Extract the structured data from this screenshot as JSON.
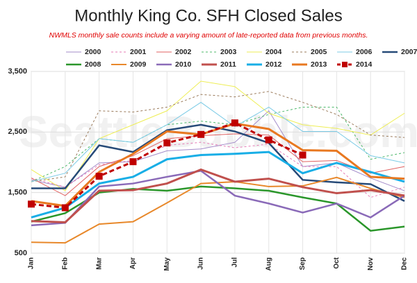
{
  "chart_data": {
    "type": "line",
    "title": "Monthly King Co. SFH Closed Sales",
    "subtitle": "NWMLS monthly sale counts include a varying amount of late-reported  data from previous months.",
    "watermark": "SeattleBubble.com",
    "categories": [
      "Jan",
      "Feb",
      "Mar",
      "Apr",
      "May",
      "Jun",
      "Jul",
      "Aug",
      "Sep",
      "Oct",
      "Nov",
      "Dec"
    ],
    "ylim": [
      500,
      3500
    ],
    "yticks": [
      {
        "value": 500,
        "label": "500"
      },
      {
        "value": 1500,
        "label": "1,500"
      },
      {
        "value": 2500,
        "label": "2,500"
      },
      {
        "value": 3500,
        "label": "3,500"
      }
    ],
    "grid": true,
    "series": [
      {
        "name": "2000",
        "color": "#a38bc9",
        "width": 1,
        "dash": false,
        "values": [
          1710,
          1590,
          1990,
          2010,
          2190,
          2220,
          2330,
          2850,
          1930,
          1990,
          1740,
          1530
        ]
      },
      {
        "name": "2001",
        "color": "#e67ab6",
        "width": 1,
        "dash": true,
        "values": [
          1740,
          1590,
          1960,
          2030,
          2280,
          2330,
          2240,
          2300,
          1930,
          1930,
          1420,
          1590
        ]
      },
      {
        "name": "2002",
        "color": "#e06060",
        "width": 1,
        "dash": false,
        "values": [
          1740,
          1450,
          1930,
          2110,
          2390,
          2440,
          2470,
          2450,
          2010,
          2030,
          1820,
          1930
        ]
      },
      {
        "name": "2003",
        "color": "#4cb86a",
        "width": 1,
        "dash": true,
        "values": [
          1680,
          1930,
          2390,
          2330,
          2620,
          2680,
          2620,
          2790,
          2910,
          2910,
          2050,
          2160
        ]
      },
      {
        "name": "2004",
        "color": "#eeee55",
        "width": 1,
        "dash": false,
        "values": [
          1880,
          1530,
          2390,
          2620,
          2850,
          3340,
          3250,
          2810,
          2620,
          2560,
          2450,
          2810
        ]
      },
      {
        "name": "2005",
        "color": "#9a7a5a",
        "width": 1,
        "dash": true,
        "values": [
          1680,
          1760,
          2850,
          2830,
          2910,
          3120,
          3080,
          3170,
          2990,
          2790,
          2450,
          2410
        ]
      },
      {
        "name": "2006",
        "color": "#7ccbe6",
        "width": 1,
        "dash": false,
        "values": [
          1680,
          1820,
          2390,
          2330,
          2620,
          2990,
          2590,
          2910,
          2510,
          2510,
          2110,
          1990
        ]
      },
      {
        "name": "2007",
        "color": "#264a78",
        "width": 2.5,
        "dash": false,
        "values": [
          1570,
          1570,
          2280,
          2170,
          2530,
          2620,
          2510,
          2320,
          1710,
          1670,
          1640,
          1360
        ]
      },
      {
        "name": "2008",
        "color": "#2a962a",
        "width": 2.5,
        "dash": false,
        "values": [
          1020,
          1160,
          1500,
          1560,
          1530,
          1600,
          1570,
          1530,
          1420,
          1320,
          870,
          940
        ]
      },
      {
        "name": "2009",
        "color": "#e8882a",
        "width": 2,
        "dash": false,
        "values": [
          680,
          670,
          980,
          1020,
          1330,
          1650,
          1680,
          1600,
          1610,
          1750,
          1570,
          1420
        ]
      },
      {
        "name": "2010",
        "color": "#8a6ab8",
        "width": 2.5,
        "dash": false,
        "values": [
          960,
          1000,
          1600,
          1650,
          1760,
          1860,
          1450,
          1320,
          1170,
          1320,
          1090,
          1450
        ]
      },
      {
        "name": "2011",
        "color": "#c0504d",
        "width": 3,
        "dash": false,
        "values": [
          1030,
          1010,
          1530,
          1540,
          1650,
          1880,
          1680,
          1730,
          1590,
          1490,
          1540,
          1450
        ]
      },
      {
        "name": "2012",
        "color": "#18aee6",
        "width": 3,
        "dash": false,
        "values": [
          1090,
          1250,
          1650,
          1760,
          2050,
          2120,
          2140,
          2170,
          1820,
          1990,
          1840,
          1680
        ]
      },
      {
        "name": "2013",
        "color": "#e87820",
        "width": 3,
        "dash": false,
        "values": [
          1360,
          1280,
          1840,
          2140,
          2510,
          2460,
          2640,
          2550,
          2200,
          2190,
          1760,
          1730
        ]
      },
      {
        "name": "2014",
        "color": "#c00000",
        "width": 3,
        "dash": true,
        "marker": "square",
        "values": [
          1310,
          1250,
          1770,
          2010,
          2320,
          2460,
          2650,
          2370,
          2120,
          null,
          null,
          null
        ]
      }
    ]
  }
}
